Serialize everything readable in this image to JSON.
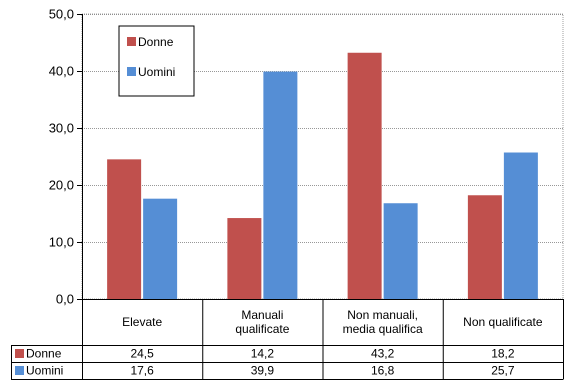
{
  "chart_data": {
    "type": "bar",
    "title": "",
    "xlabel": "",
    "ylabel": "",
    "categories": [
      [
        "Elevate"
      ],
      [
        "Manuali",
        "qualificate"
      ],
      [
        "Non manuali,",
        "media qualifica"
      ],
      [
        "Non qualificate"
      ]
    ],
    "series": [
      {
        "name": "Donne",
        "color": "#C0504D",
        "values": [
          24.5,
          14.2,
          43.2,
          18.2
        ],
        "labels": [
          "24,5",
          "14,2",
          "43,2",
          "18,2"
        ]
      },
      {
        "name": "Uomini",
        "color": "#558ED5",
        "values": [
          17.6,
          39.9,
          16.8,
          25.7
        ],
        "labels": [
          "17,6",
          "39,9",
          "16,8",
          "25,7"
        ]
      }
    ],
    "ylim": [
      0,
      50
    ],
    "yticks": [
      0,
      10,
      20,
      30,
      40,
      50
    ],
    "ytick_labels": [
      "0,0",
      "10,0",
      "20,0",
      "30,0",
      "40,0",
      "50,0"
    ],
    "grid": true,
    "legend": "top-left",
    "data_table": true
  }
}
